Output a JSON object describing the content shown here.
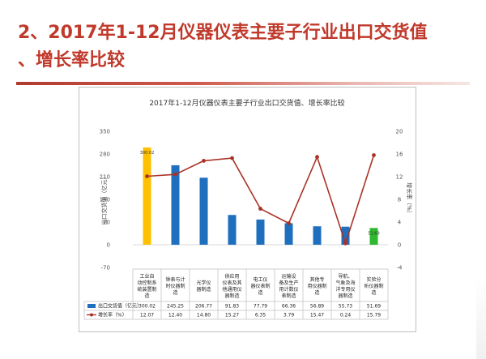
{
  "slide": {
    "title_line1": "2、2017年1-12月仪器仪表主要子行业出口交货值",
    "title_line2": "、增长率比较"
  },
  "colors": {
    "title": "#c0392b",
    "bar_default": "#1f6fbf",
    "bar_highlight_first": "#ffc000",
    "bar_highlight_last": "#2eb82e",
    "line": "#a93226"
  },
  "chart_data": {
    "type": "bar",
    "title": "2017年1-12月仪器仪表主要子行业出口交货值、增长率比较",
    "categories": [
      [
        "工业自",
        "动控制系",
        "统装置制",
        "造"
      ],
      [
        "钟表与计",
        "时仪器制",
        "造"
      ],
      [
        "光学仪",
        "器制造"
      ],
      [
        "供应用",
        "仪表及其",
        "他通用仪",
        "器制造"
      ],
      [
        "电工仪",
        "器仪表制",
        "造"
      ],
      [
        "运输设",
        "备及生产",
        "用计数仪",
        "表制造"
      ],
      [
        "其他专",
        "用仪器制",
        "造"
      ],
      [
        "导航、",
        "气象及海",
        "洋专用仪",
        "器制造"
      ],
      [
        "实验分",
        "析仪器制",
        "造"
      ]
    ],
    "series": [
      {
        "name": "出口交货值（亿元）",
        "kind": "bar",
        "axis": "left",
        "values": [
          300.02,
          245.25,
          206.77,
          91.83,
          77.79,
          66.36,
          56.89,
          55.73,
          51.69
        ],
        "value_labels": [
          "300.02",
          "245.25",
          "206.77",
          "91.83",
          "77.79",
          "66.36",
          "56.89",
          "55.73",
          "51.69"
        ]
      },
      {
        "name": "增长率（%）",
        "kind": "line",
        "axis": "right",
        "values": [
          12.07,
          12.4,
          14.8,
          15.27,
          6.35,
          3.79,
          15.47,
          0.24,
          15.79
        ],
        "value_labels": [
          "12.07",
          "12.40",
          "14.80",
          "15.27",
          "6.35",
          "3.79",
          "15.47",
          "0.24",
          "15.79"
        ]
      }
    ],
    "ylabel": "出口交货值（亿元）",
    "y2label": "增长率（%）",
    "ylim": [
      -70,
      350
    ],
    "y2lim": [
      -4,
      20
    ],
    "yticks": [
      -70,
      0,
      70,
      140,
      210,
      280,
      350
    ],
    "y2ticks": [
      -4,
      0,
      4,
      8,
      12,
      16,
      20
    ],
    "inner_labels": [
      "300.02",
      "51.69"
    ],
    "data_table": true,
    "grid": false
  }
}
